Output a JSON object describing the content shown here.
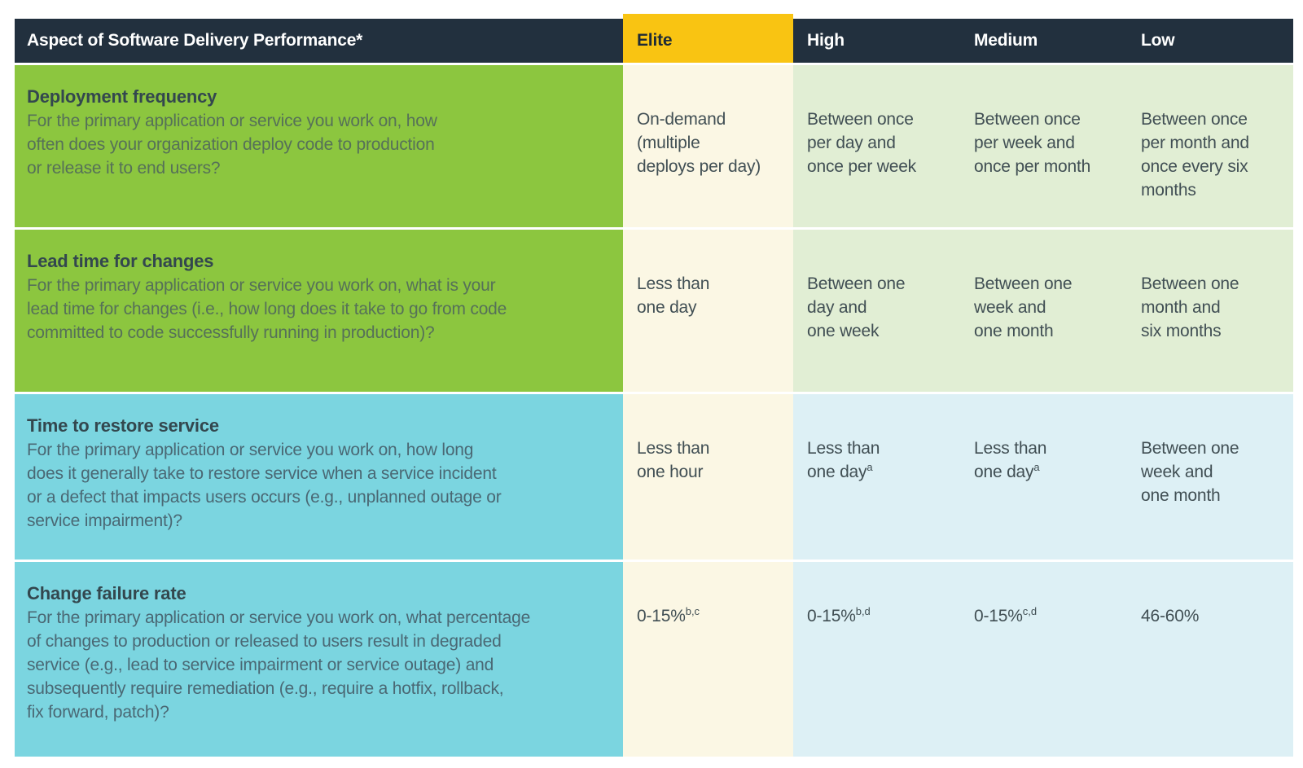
{
  "table": {
    "colors": {
      "header-bg": "#22303E",
      "elite-bg": "#F9C412",
      "aspect-green": "#8CC63F",
      "aspect-teal": "#7BD5E0",
      "elite-cell": "#FBF7E4",
      "value-green": "#E1EED4",
      "value-blue": "#DDF0F5",
      "header-text": "#FFFFFF",
      "elite-header-text": "#1E2B36",
      "title-text": "#33474E",
      "desc-text-green": "#567158",
      "desc-text-teal": "#4A6874",
      "value-text": "#414F54"
    },
    "header": {
      "aspect_label": "Aspect of Software Delivery Performance*",
      "levels": [
        "Elite",
        "High",
        "Medium",
        "Low"
      ]
    },
    "rows": [
      {
        "title": "Deployment frequency",
        "description": "For the primary application or service you work on, how\noften does your organization deploy code to production\nor release it to end users?",
        "values": [
          {
            "text": "On-demand\n(multiple\ndeploys per day)",
            "sup": ""
          },
          {
            "text": "Between once\nper day and\nonce per week",
            "sup": ""
          },
          {
            "text": "Between once\nper week and\nonce per month",
            "sup": ""
          },
          {
            "text": "Between once\nper month and\nonce every six\nmonths",
            "sup": ""
          }
        ]
      },
      {
        "title": "Lead time for changes",
        "description": "For the primary application or service you work on, what is your\nlead time for changes (i.e., how long does it take to go from code\ncommitted to code successfully running in production)?",
        "values": [
          {
            "text": "Less than\none day",
            "sup": ""
          },
          {
            "text": "Between one\nday and\none week",
            "sup": ""
          },
          {
            "text": "Between one\nweek and\none month",
            "sup": ""
          },
          {
            "text": "Between one\nmonth and\nsix months",
            "sup": ""
          }
        ]
      },
      {
        "title": "Time to restore service",
        "description": "For the primary application or service you work on, how long\ndoes it generally take to restore service when a service incident\nor a defect that impacts users occurs (e.g., unplanned outage or\nservice impairment)?",
        "values": [
          {
            "text": "Less than\none hour",
            "sup": ""
          },
          {
            "text": "Less than\none day",
            "sup": "a"
          },
          {
            "text": "Less than\none day",
            "sup": "a"
          },
          {
            "text": "Between one\nweek and\none month",
            "sup": ""
          }
        ]
      },
      {
        "title": "Change failure rate",
        "description": "For the primary application or service you work on, what percentage\nof changes to production or released to users result in degraded\nservice (e.g., lead to service impairment or service outage) and\nsubsequently require remediation (e.g., require a hotfix, rollback,\nfix forward, patch)?",
        "values": [
          {
            "text": "0-15%",
            "sup": "b,c"
          },
          {
            "text": "0-15%",
            "sup": "b,d"
          },
          {
            "text": "0-15%",
            "sup": "c,d"
          },
          {
            "text": "46-60%",
            "sup": ""
          }
        ]
      }
    ]
  }
}
